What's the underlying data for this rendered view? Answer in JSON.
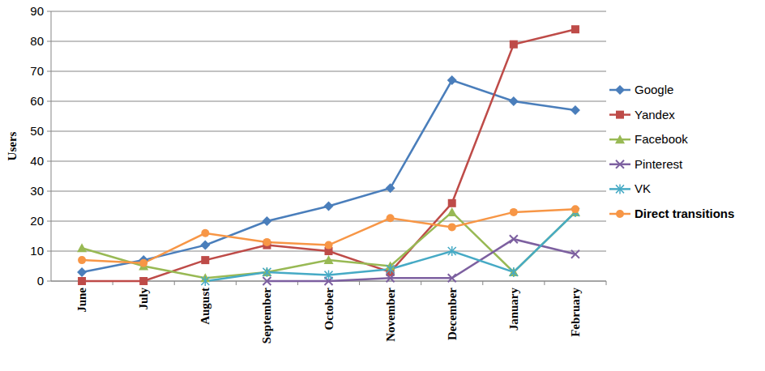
{
  "chart_data": {
    "type": "line",
    "y_label": "Users",
    "categories": [
      "June",
      "July",
      "August",
      "September",
      "October",
      "November",
      "December",
      "January",
      "February"
    ],
    "ylim": [
      0,
      90
    ],
    "yticks": [
      0,
      10,
      20,
      30,
      40,
      50,
      60,
      70,
      80,
      90
    ],
    "grid": true,
    "legend": "right",
    "series": [
      {
        "name": "Google",
        "color": "#4a7ebb",
        "marker": "diamond",
        "values": [
          3,
          7,
          12,
          20,
          25,
          31,
          67,
          60,
          57
        ]
      },
      {
        "name": "Yandex",
        "color": "#be4b48",
        "marker": "square",
        "values": [
          0,
          0,
          7,
          12,
          10,
          3,
          26,
          79,
          84
        ]
      },
      {
        "name": "Facebook",
        "color": "#98b954",
        "marker": "triangle",
        "values": [
          11,
          5,
          1,
          3,
          7,
          5,
          23,
          3,
          23
        ]
      },
      {
        "name": "Pinterest",
        "color": "#7d60a0",
        "marker": "x",
        "values": [
          null,
          null,
          null,
          0,
          0,
          1,
          1,
          14,
          9
        ]
      },
      {
        "name": "VK",
        "color": "#46aac5",
        "marker": "star",
        "values": [
          null,
          null,
          0,
          3,
          2,
          4,
          10,
          3,
          23
        ]
      },
      {
        "name": "Direct transitions",
        "color": "#f79646",
        "marker": "circle",
        "values": [
          7,
          6,
          16,
          13,
          12,
          21,
          18,
          23,
          24
        ]
      }
    ]
  }
}
